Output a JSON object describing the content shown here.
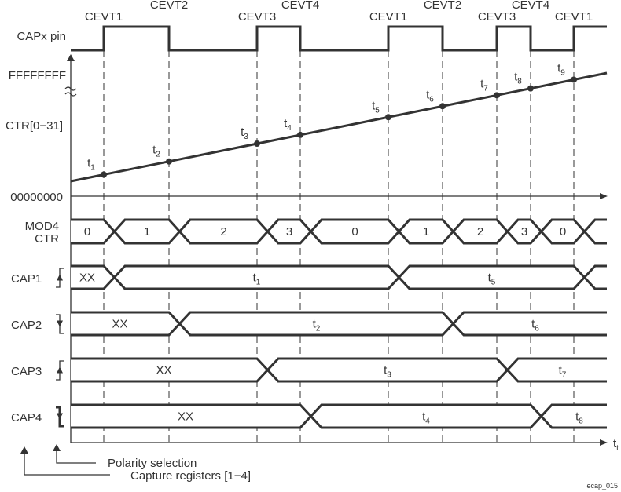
{
  "events": [
    "CEVT1",
    "CEVT2",
    "CEVT3",
    "CEVT4",
    "CEVT1",
    "CEVT2",
    "CEVT3",
    "CEVT4",
    "CEVT1"
  ],
  "signal_labels": {
    "capx_pin": "CAPx pin",
    "ffffffff": "FFFFFFFF",
    "ctr": "CTR[0−31]",
    "zero": "00000000",
    "mod4_line1": "MOD4",
    "mod4_line2": "CTR",
    "cap1": "CAP1",
    "cap2": "CAP2",
    "cap3": "CAP3",
    "cap4": "CAP4"
  },
  "ctr_points": [
    "1",
    "2",
    "3",
    "4",
    "5",
    "6",
    "7",
    "8",
    "9"
  ],
  "mod4_values": [
    "0",
    "1",
    "2",
    "3",
    "0",
    "1",
    "2",
    "3",
    "0"
  ],
  "cap_rows": [
    {
      "name": "CAP1",
      "polarity": "rising",
      "initial": "XX",
      "values": [
        "1",
        "5"
      ]
    },
    {
      "name": "CAP2",
      "polarity": "falling",
      "initial": "XX",
      "values": [
        "2",
        "6"
      ]
    },
    {
      "name": "CAP3",
      "polarity": "rising",
      "initial": "XX",
      "values": [
        "3",
        "7"
      ]
    },
    {
      "name": "CAP4",
      "polarity": "falling",
      "initial": "XX",
      "values": [
        "4",
        "8"
      ]
    }
  ],
  "time_axis_label": "t",
  "time_axis_sub": "t",
  "annotations": {
    "polarity": "Polarity selection",
    "capture": "Capture registers [1−4]"
  },
  "figure_id": "ecap_015",
  "colors": {
    "ink": "#333333",
    "background": "#ffffff"
  }
}
